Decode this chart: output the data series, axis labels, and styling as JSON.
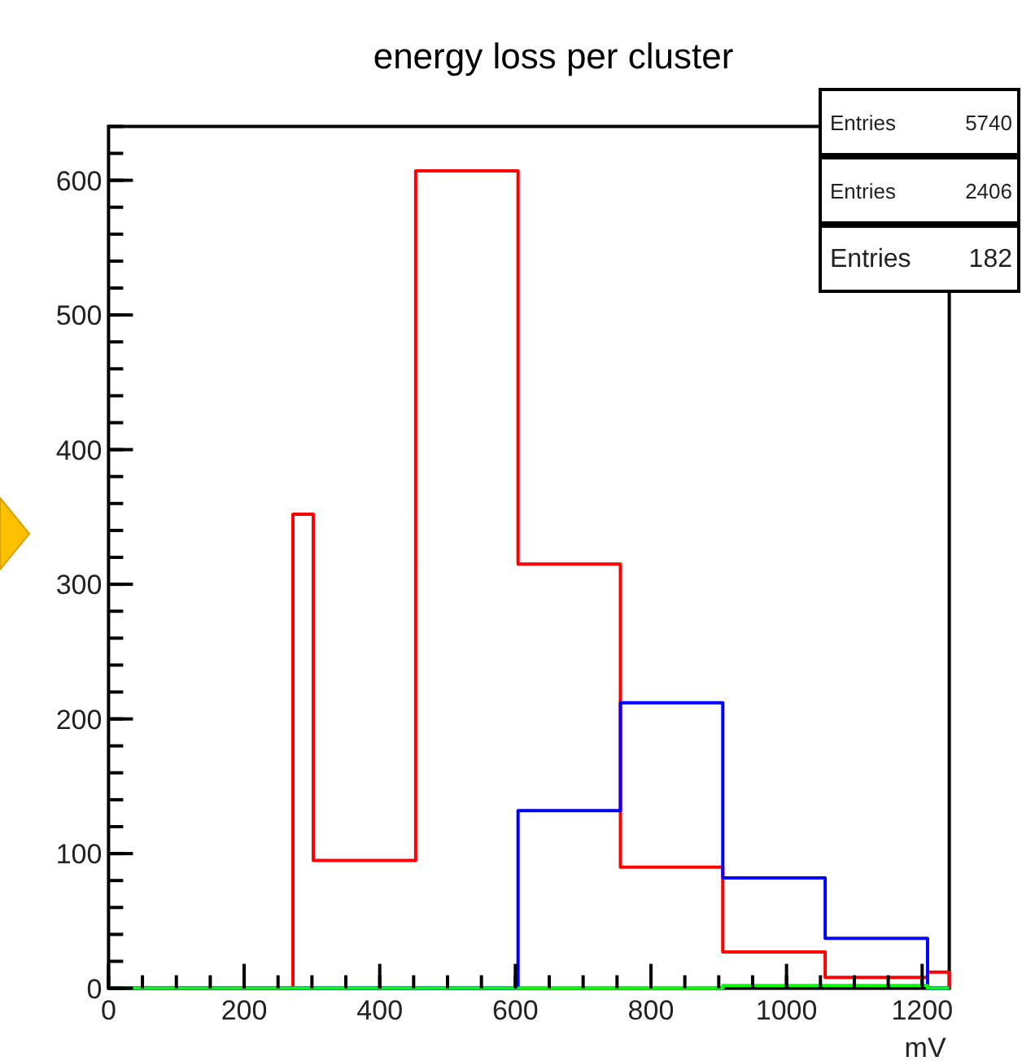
{
  "chart_data": {
    "type": "histogram",
    "title": "energy loss per cluster",
    "xlabel": "mV",
    "bins": [
      0,
      272,
      302,
      453,
      604,
      755,
      906,
      1057,
      1208,
      1240
    ],
    "series": [
      {
        "color": "#ff0000",
        "values": [
          0,
          352,
          95,
          607,
          315,
          90,
          27,
          8,
          12
        ]
      },
      {
        "color": "#0000ff",
        "values": [
          0,
          0,
          0,
          0,
          132,
          212,
          82,
          37,
          0
        ]
      },
      {
        "color": "#00ff00",
        "values": [
          0,
          0,
          0,
          0,
          0,
          0,
          2,
          2,
          0
        ]
      }
    ],
    "xlim": [
      0,
      1240
    ],
    "xticks": [
      0,
      200,
      400,
      600,
      800,
      1000,
      1200
    ],
    "ylim": [
      0,
      640
    ],
    "yticks": [
      0,
      100,
      200,
      300,
      400,
      500,
      600
    ],
    "annotations": [
      "Entries 5740",
      "Entries 2406",
      "Entries 182"
    ],
    "grid": false
  }
}
